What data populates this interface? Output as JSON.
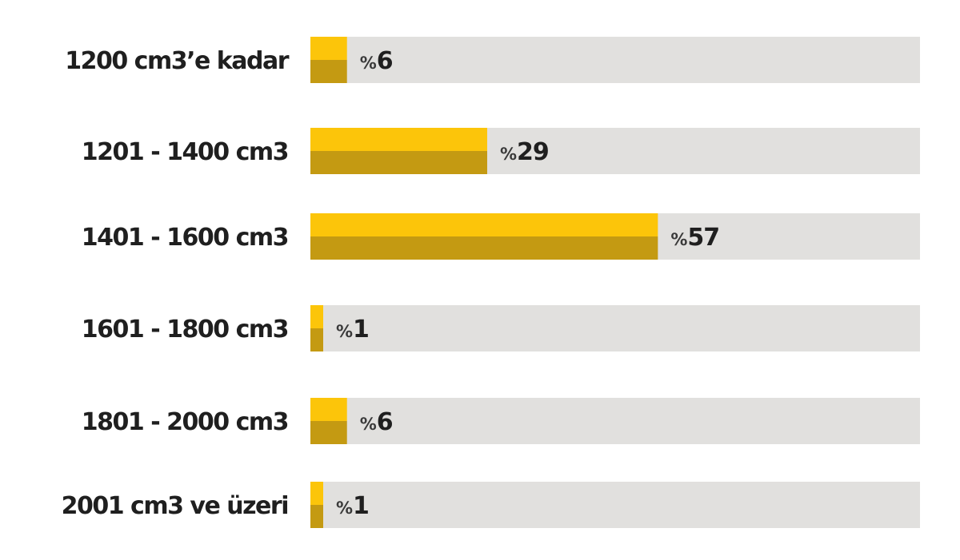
{
  "colors": {
    "track": "#e1e0de",
    "bar_top": "#fcc50a",
    "bar_bottom": "#c49a12",
    "text": "#1f1f1f"
  },
  "chart_data": {
    "type": "bar",
    "orientation": "horizontal",
    "categories": [
      "1200 cm3’e kadar",
      "1201 - 1400 cm3",
      "1401 - 1600 cm3",
      "1601 - 1800 cm3",
      "1801 - 2000 cm3",
      "2001 cm3 ve üzeri"
    ],
    "values": [
      6,
      29,
      57,
      1,
      6,
      1
    ],
    "value_prefix": "%",
    "xlim": [
      0,
      100
    ],
    "grid": false,
    "legend": "none"
  }
}
